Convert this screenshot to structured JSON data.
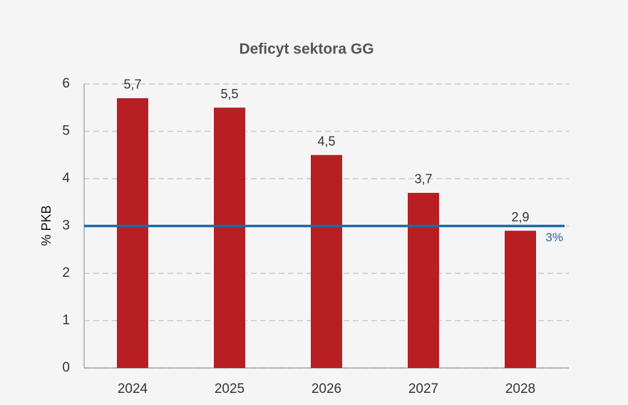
{
  "chart_data": {
    "type": "bar",
    "title": "Deficyt sektora GG",
    "y_label": "% PKB",
    "categories": [
      "2024",
      "2025",
      "2026",
      "2027",
      "2028"
    ],
    "values": [
      5.7,
      5.5,
      4.5,
      3.7,
      2.9
    ],
    "value_labels": [
      "5,7",
      "5,5",
      "4,5",
      "3,7",
      "2,9"
    ],
    "color": "#b71f23",
    "ylim": [
      0,
      6
    ],
    "yticks": [
      0,
      1,
      2,
      3,
      4,
      5,
      6
    ],
    "grid": true,
    "reference_line": {
      "value": 3,
      "label": "3%",
      "color": "#1f6aa5"
    }
  }
}
